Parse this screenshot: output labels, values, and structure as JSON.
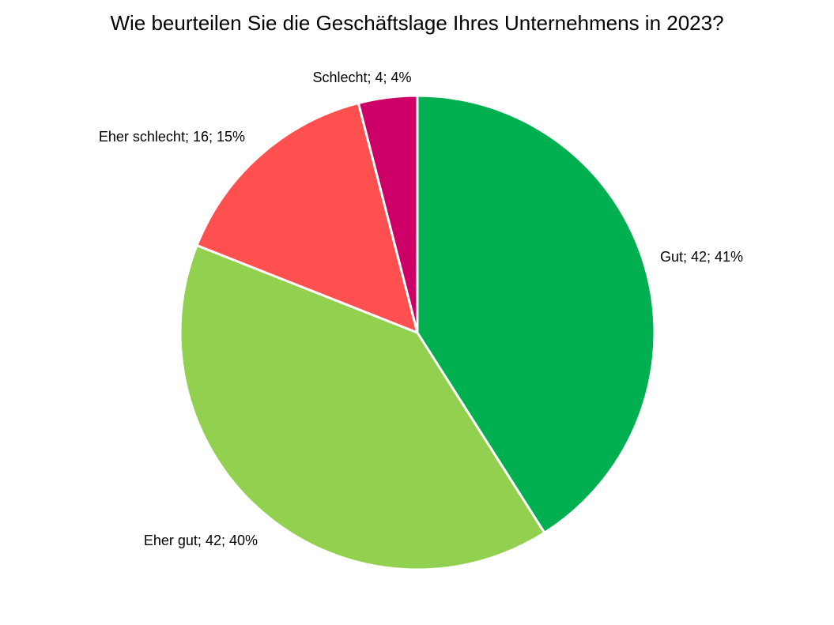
{
  "chart_data": {
    "type": "pie",
    "title": "Wie beurteilen Sie die Geschäftslage Ihres Unternehmens in 2023?",
    "slices": [
      {
        "name": "Gut",
        "value": 42,
        "percent": 41,
        "label": "Gut; 42; 41%",
        "color": "#00b050"
      },
      {
        "name": "Eher gut",
        "value": 42,
        "percent": 40,
        "label": "Eher gut; 42; 40%",
        "color": "#92d050"
      },
      {
        "name": "Eher schlecht",
        "value": 16,
        "percent": 15,
        "label": "Eher schlecht; 16; 15%",
        "color": "#ff5050"
      },
      {
        "name": "Schlecht",
        "value": 4,
        "percent": 4,
        "label": "Schlecht; 4; 4%",
        "color": "#cc0066"
      }
    ],
    "start_angle": "12 o'clock",
    "direction": "clockwise",
    "slice_border_color": "#ffffff"
  }
}
